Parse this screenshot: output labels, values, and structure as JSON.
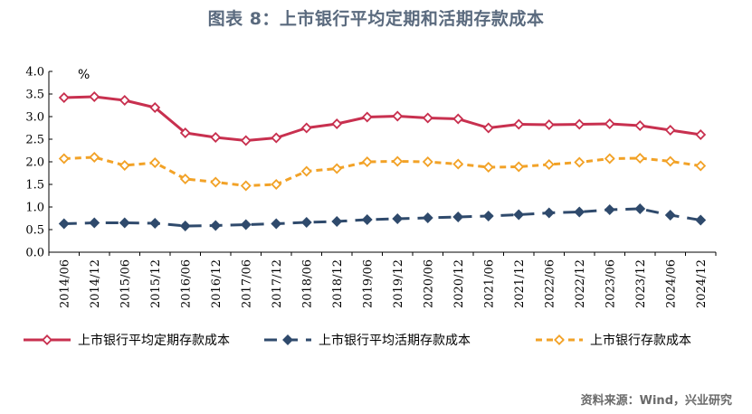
{
  "title": "图表 8：上市银行平均定期和活期存款成本",
  "source": "资料来源：Wind，兴业研究",
  "chart_data": {
    "type": "line",
    "unit_label": "%",
    "ylim": [
      0,
      4.0
    ],
    "yticks": [
      "0.0",
      "0.5",
      "1.0",
      "1.5",
      "2.0",
      "2.5",
      "3.0",
      "3.5",
      "4.0"
    ],
    "grid": false,
    "legend_position": "bottom",
    "categories": [
      "2014/06",
      "2014/12",
      "2015/06",
      "2015/12",
      "2016/06",
      "2016/12",
      "2017/06",
      "2017/12",
      "2018/06",
      "2018/12",
      "2019/06",
      "2019/12",
      "2020/06",
      "2020/12",
      "2021/06",
      "2021/12",
      "2022/06",
      "2022/12",
      "2023/06",
      "2023/12",
      "2024/06",
      "2024/12"
    ],
    "series": [
      {
        "name": "上市银行平均定期存款成本",
        "color": "#c8304f",
        "dash": "solid",
        "values": [
          3.42,
          3.44,
          3.36,
          3.2,
          2.64,
          2.54,
          2.47,
          2.53,
          2.75,
          2.84,
          2.99,
          3.01,
          2.97,
          2.95,
          2.75,
          2.83,
          2.82,
          2.83,
          2.84,
          2.8,
          2.7,
          2.6
        ]
      },
      {
        "name": "上市银行平均活期存款成本",
        "color": "#2f4a6c",
        "dash": "long-dash",
        "values": [
          0.63,
          0.65,
          0.65,
          0.64,
          0.58,
          0.59,
          0.61,
          0.63,
          0.66,
          0.68,
          0.72,
          0.74,
          0.76,
          0.78,
          0.8,
          0.83,
          0.87,
          0.89,
          0.94,
          0.96,
          0.82,
          0.71
        ]
      },
      {
        "name": "上市银行存款成本",
        "color": "#f2a227",
        "dash": "short-dash",
        "values": [
          2.07,
          2.1,
          1.92,
          1.98,
          1.62,
          1.55,
          1.47,
          1.5,
          1.79,
          1.85,
          2.0,
          2.01,
          2.0,
          1.95,
          1.88,
          1.89,
          1.94,
          1.99,
          2.07,
          2.08,
          2.01,
          1.91
        ]
      }
    ]
  }
}
